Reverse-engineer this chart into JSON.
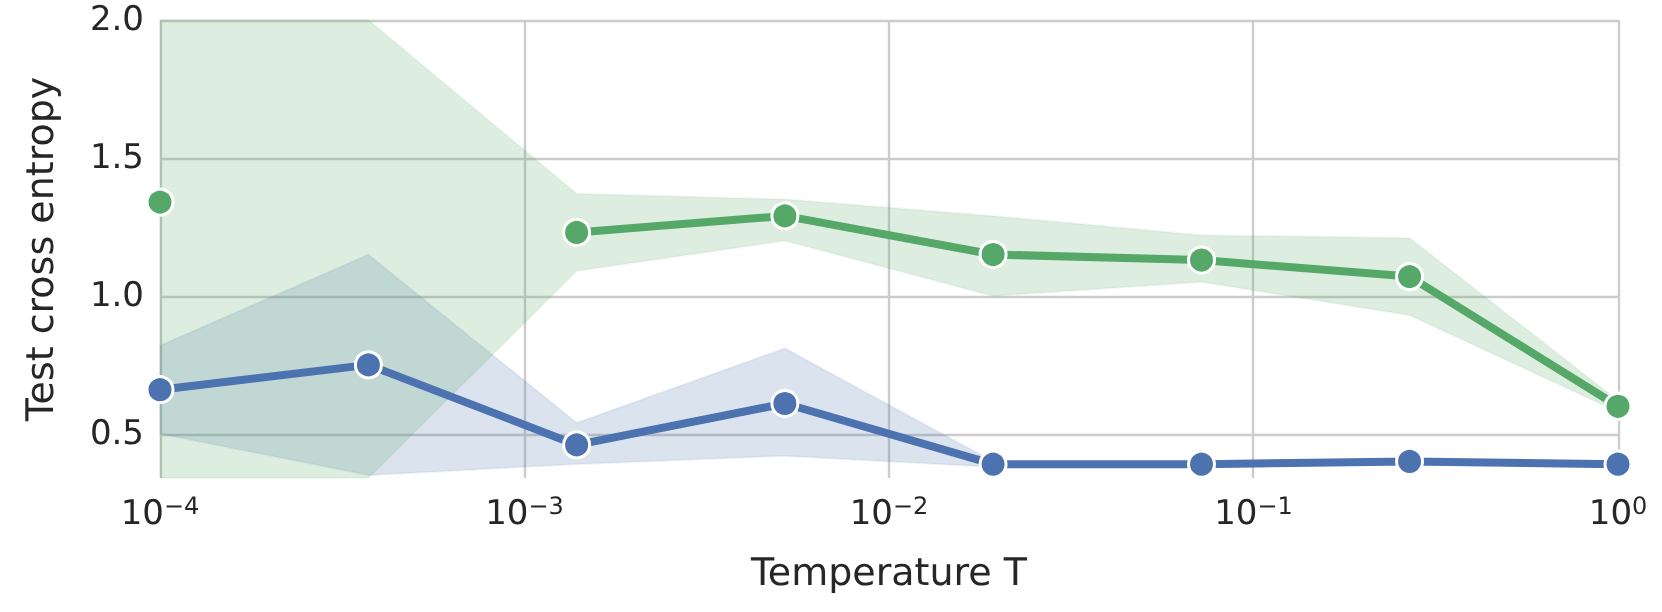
{
  "chart_data": {
    "type": "line",
    "xlabel": "Temperature T",
    "ylabel": "Test cross entropy",
    "x": [
      0.0001,
      0.000373,
      0.00139,
      0.00518,
      0.0193,
      0.072,
      0.268,
      1
    ],
    "series": [
      {
        "color": "#4c72b0",
        "values": [
          0.66,
          0.75,
          0.46,
          0.61,
          0.39,
          0.39,
          0.4,
          0.39
        ],
        "lower": [
          0.5,
          0.35,
          0.39,
          0.42,
          0.38,
          0.38,
          0.39,
          0.38
        ],
        "upper": [
          0.82,
          1.15,
          0.54,
          0.81,
          0.4,
          0.4,
          0.41,
          0.4
        ]
      },
      {
        "color": "#55a868",
        "values": [
          1.34,
          null,
          1.23,
          1.29,
          1.15,
          1.13,
          1.07,
          0.6
        ],
        "lower": [
          0.34,
          0.34,
          1.09,
          1.2,
          1.0,
          1.05,
          0.93,
          0.58
        ],
        "upper": [
          2.0,
          2.0,
          1.37,
          1.35,
          1.29,
          1.22,
          1.21,
          0.62
        ]
      }
    ],
    "log": "x",
    "xlim": [
      0.0001,
      1
    ],
    "xticks": [
      {
        "value": 0.0001,
        "label": "10$^{−4}$"
      },
      {
        "value": 0.001,
        "label": "10$^{−3}$"
      },
      {
        "value": 0.01,
        "label": "10$^{−2}$"
      },
      {
        "value": 0.1,
        "label": "10$^{−1}$"
      },
      {
        "value": 1,
        "label": "10$^{0}$"
      }
    ],
    "ylim": [
      0.34,
      2.0
    ],
    "yticks": [
      {
        "value": 0.5,
        "label": "0.5"
      },
      {
        "value": 1,
        "label": "1.0"
      },
      {
        "value": 1.5,
        "label": "1.5"
      },
      {
        "value": 2,
        "label": "2.0"
      }
    ],
    "grid": true,
    "marker": "circle",
    "line_style": "solid"
  }
}
